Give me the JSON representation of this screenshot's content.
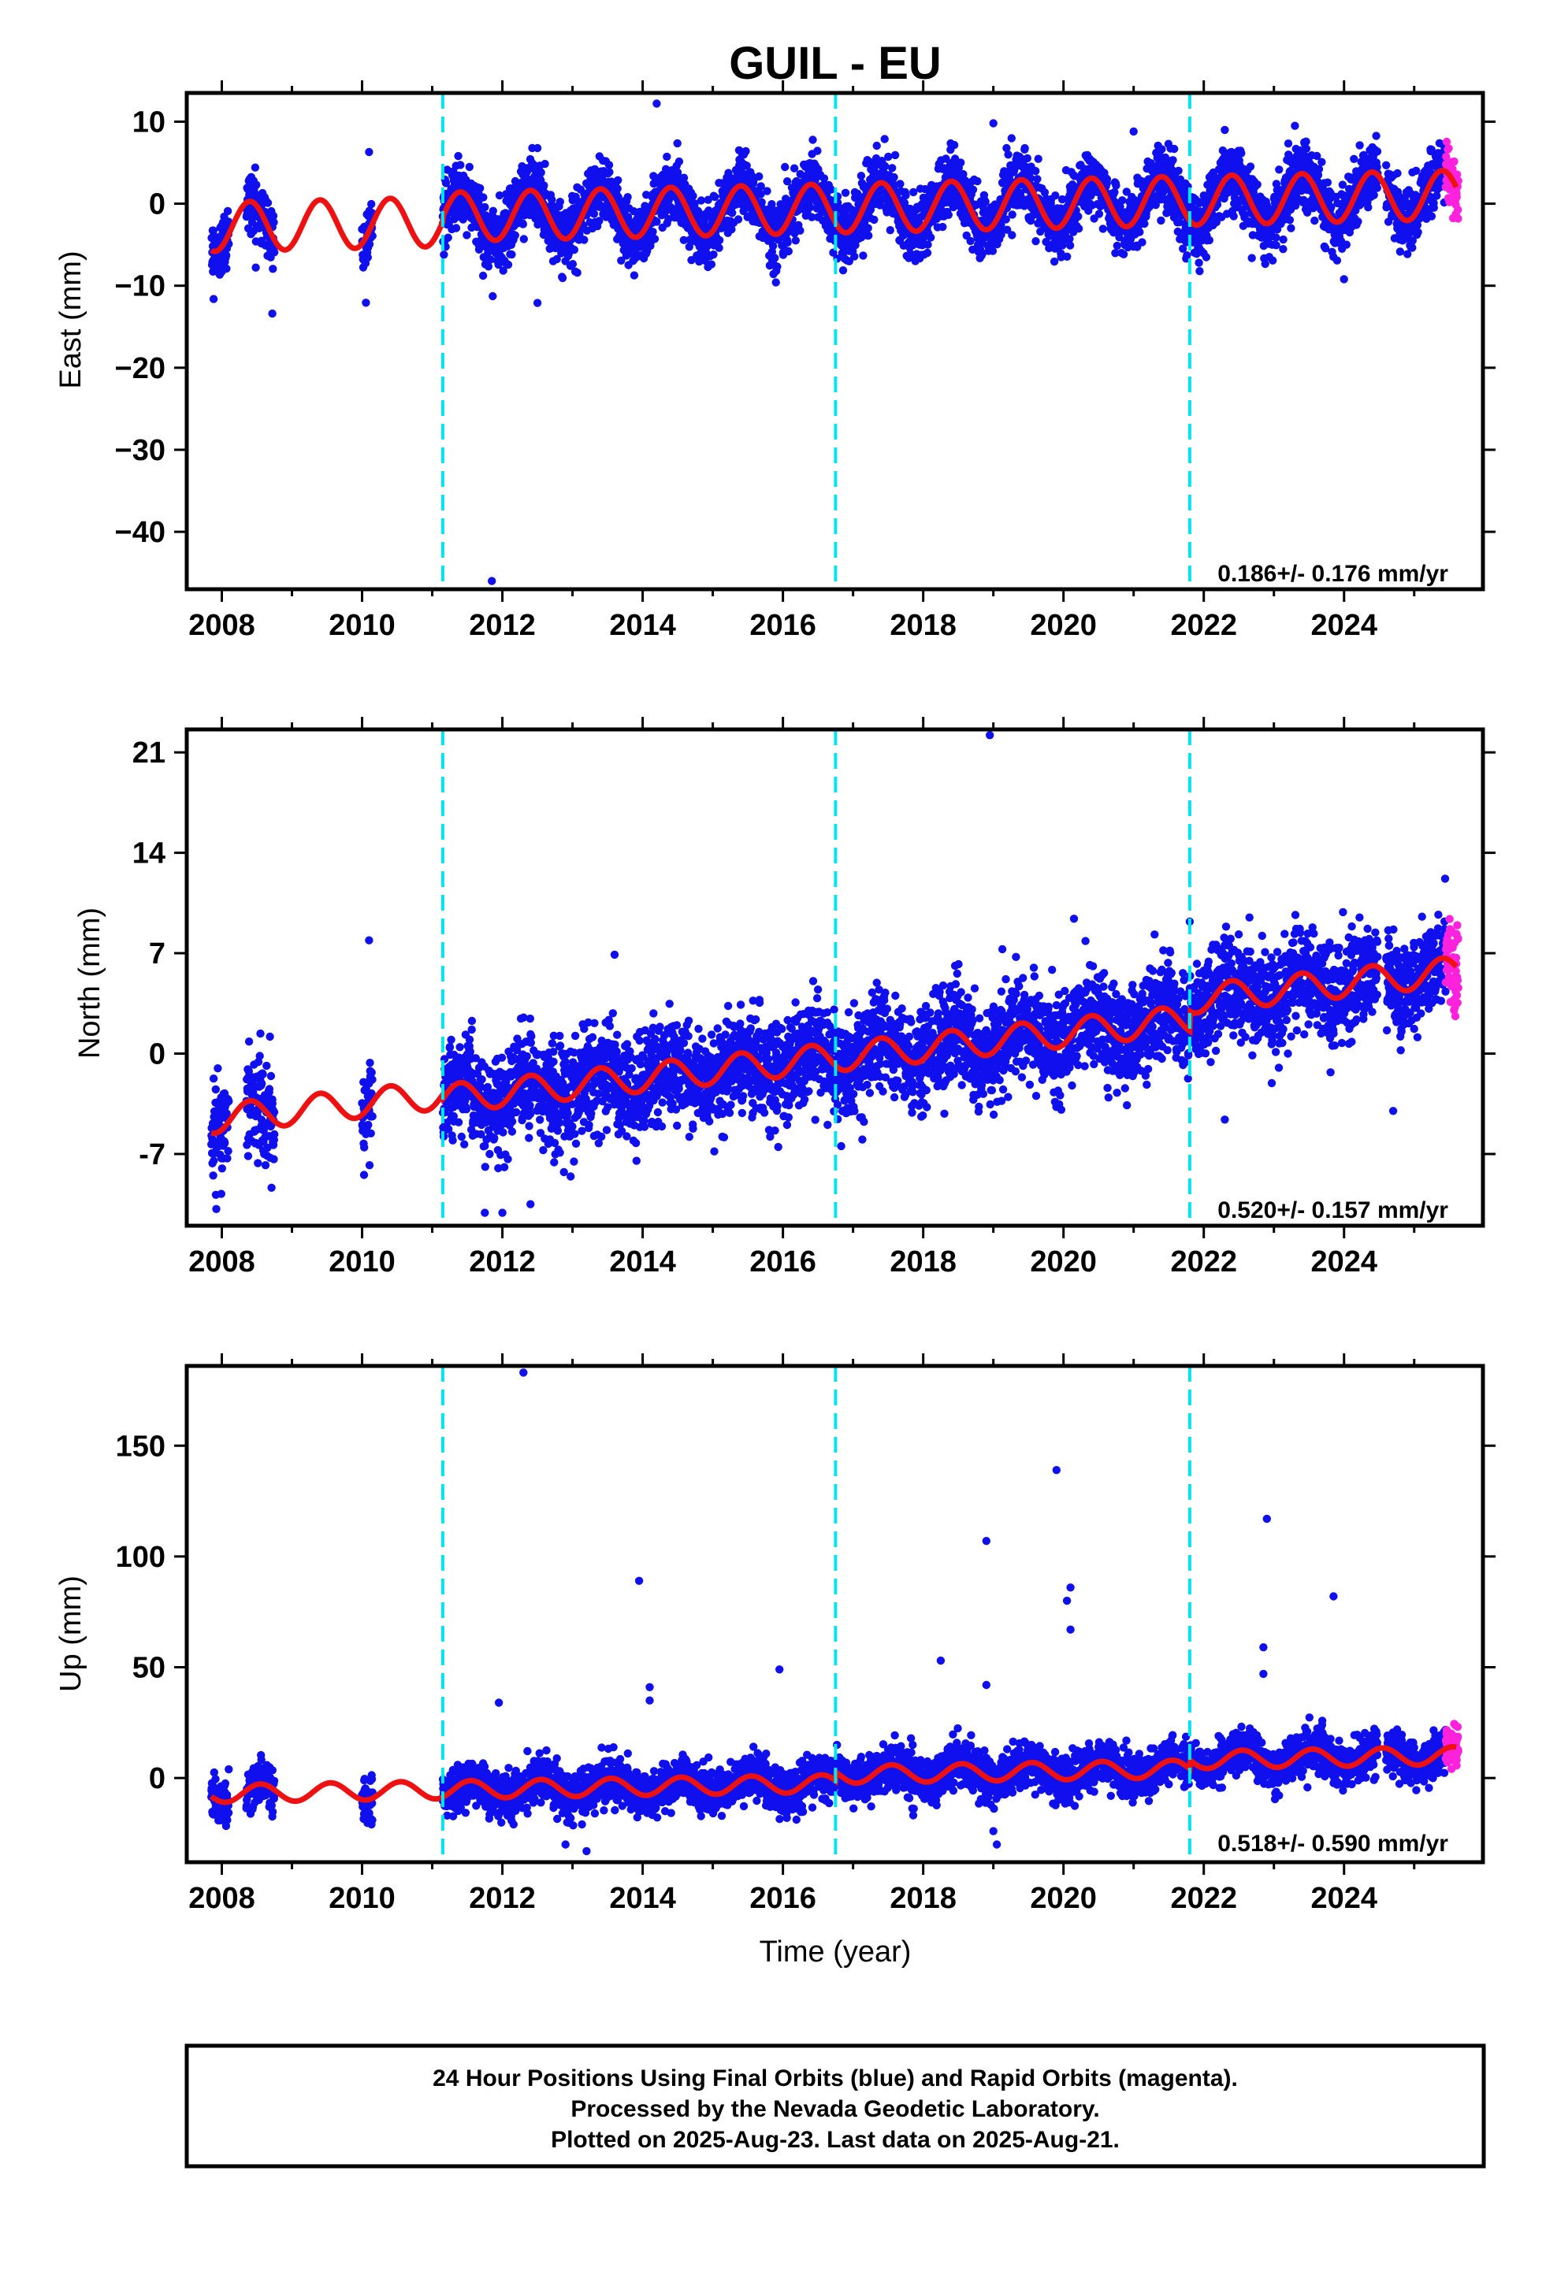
{
  "title": "GUIL - EU",
  "x_axis_label": "Time (year)",
  "x_ticks": [
    "2008",
    "2010",
    "2012",
    "2014",
    "2016",
    "2018",
    "2020",
    "2022",
    "2024"
  ],
  "footer": {
    "line1": "24 Hour Positions Using Final Orbits (blue) and Rapid Orbits (magenta).",
    "line2": "Processed by the Nevada Geodetic Laboratory.",
    "line3": "Plotted on 2025-Aug-23. Last data on 2025-Aug-21."
  },
  "colors": {
    "final_orbits": "#1010ee",
    "rapid_orbits": "#ff22dd",
    "model": "#ee1111",
    "breaks": "#00e5ee"
  },
  "chart_data": [
    {
      "type": "scatter",
      "component": "East",
      "ylabel": "East (mm)",
      "xlim": [
        2007.5,
        2025.98
      ],
      "ylim": [
        -47,
        13.5
      ],
      "yticks": [
        10,
        0,
        -10,
        -20,
        -30,
        -40
      ],
      "ytick_labels": [
        "10",
        "0",
        "−10",
        "−20",
        "−30",
        "−40"
      ],
      "rate_text": "0.186+/- 0.176 mm/yr",
      "velocity": 0.186,
      "model": {
        "offset_2008": -2.8,
        "annual_amplitude": 3.0,
        "annual_phase_peak": 0.4,
        "semiannual_amplitude": 0.0
      },
      "step_offsets": [
        {
          "at": 2011.15,
          "value": 0.6
        },
        {
          "at": 2016.75,
          "value": 0.0
        },
        {
          "at": 2021.8,
          "value": 0.0
        }
      ],
      "scatter_sigma": 1.9,
      "final_orbit_data_spans": [
        [
          2007.85,
          2008.1
        ],
        [
          2008.35,
          2008.75
        ],
        [
          2010.0,
          2010.15
        ],
        [
          2011.15,
          2024.48
        ],
        [
          2024.6,
          2025.45
        ]
      ],
      "rapid_orbit_span": [
        2025.45,
        2025.63
      ],
      "outliers": [
        [
          2014.2,
          12.2
        ],
        [
          2011.85,
          -46.0
        ],
        [
          2010.1,
          6.3
        ],
        [
          2008.72,
          -13.4
        ],
        [
          2015.9,
          -9.6
        ],
        [
          2012.5,
          -12.1
        ],
        [
          2021.0,
          8.8
        ],
        [
          2022.3,
          9.0
        ],
        [
          2023.3,
          9.5
        ],
        [
          2024.0,
          -9.2
        ],
        [
          2019.0,
          9.8
        ]
      ]
    },
    {
      "type": "scatter",
      "component": "North",
      "ylabel": "North (mm)",
      "xlim": [
        2007.5,
        2025.98
      ],
      "ylim": [
        -12,
        22.6
      ],
      "yticks": [
        21,
        14,
        7,
        0,
        -7
      ],
      "ytick_labels": [
        "21",
        "14",
        "7",
        "0",
        "-7"
      ],
      "rate_text": "0.520+/- 0.157 mm/yr",
      "velocity": 0.52,
      "model": {
        "offset_2008": -4.5,
        "annual_amplitude": 1.0,
        "annual_phase_peak": 0.4,
        "semiannual_amplitude": 0.0
      },
      "step_offsets": [
        {
          "at": 2011.15,
          "value": -0.3
        },
        {
          "at": 2016.75,
          "value": 0.0
        },
        {
          "at": 2021.8,
          "value": 1.4
        }
      ],
      "scatter_sigma": 1.7,
      "final_orbit_data_spans": [
        [
          2007.85,
          2008.1
        ],
        [
          2008.35,
          2008.75
        ],
        [
          2010.0,
          2010.15
        ],
        [
          2011.15,
          2024.48
        ],
        [
          2024.6,
          2025.45
        ]
      ],
      "rapid_orbit_span": [
        2025.45,
        2025.63
      ],
      "outliers": [
        [
          2018.95,
          22.2
        ],
        [
          2020.15,
          9.4
        ],
        [
          2010.1,
          7.9
        ],
        [
          2023.55,
          8.8
        ],
        [
          2011.75,
          -11.1
        ],
        [
          2012.0,
          -11.1
        ],
        [
          2012.4,
          -10.5
        ],
        [
          2013.6,
          6.9
        ],
        [
          2021.8,
          9.2
        ],
        [
          2024.7,
          -4.0
        ],
        [
          2022.3,
          -4.6
        ]
      ]
    },
    {
      "type": "scatter",
      "component": "Up",
      "ylabel": "Up (mm)",
      "xlim": [
        2007.5,
        2025.98
      ],
      "ylim": [
        -38,
        186
      ],
      "yticks": [
        150,
        100,
        50,
        0
      ],
      "ytick_labels": [
        "150",
        "100",
        "50",
        "0"
      ],
      "rate_text": "0.518+/- 0.590 mm/yr",
      "velocity": 0.518,
      "model": {
        "offset_2008": -7.0,
        "annual_amplitude": 4.0,
        "annual_phase_peak": 0.55,
        "semiannual_amplitude": 0.0
      },
      "step_offsets": [
        {
          "at": 2011.15,
          "value": 0.0
        },
        {
          "at": 2016.75,
          "value": 4.0
        },
        {
          "at": 2021.8,
          "value": 4.0
        }
      ],
      "scatter_sigma": 4.8,
      "final_orbit_data_spans": [
        [
          2007.85,
          2008.1
        ],
        [
          2008.35,
          2008.75
        ],
        [
          2010.0,
          2010.15
        ],
        [
          2011.15,
          2024.48
        ],
        [
          2024.6,
          2025.45
        ]
      ],
      "rapid_orbit_span": [
        2025.45,
        2025.63
      ],
      "outliers": [
        [
          2012.3,
          183
        ],
        [
          2019.9,
          139
        ],
        [
          2022.9,
          117
        ],
        [
          2018.9,
          107
        ],
        [
          2013.95,
          89
        ],
        [
          2020.1,
          86
        ],
        [
          2020.05,
          80
        ],
        [
          2023.85,
          82
        ],
        [
          2020.1,
          67
        ],
        [
          2022.85,
          59
        ],
        [
          2018.25,
          53
        ],
        [
          2015.95,
          49
        ],
        [
          2022.85,
          47
        ],
        [
          2014.1,
          41
        ],
        [
          2018.9,
          42
        ],
        [
          2014.1,
          35
        ],
        [
          2011.95,
          34
        ],
        [
          2019.0,
          -24
        ],
        [
          2019.05,
          -30
        ],
        [
          2013.2,
          -33
        ],
        [
          2012.9,
          -30
        ]
      ]
    }
  ],
  "breaks": [
    2011.15,
    2016.75,
    2021.8
  ]
}
